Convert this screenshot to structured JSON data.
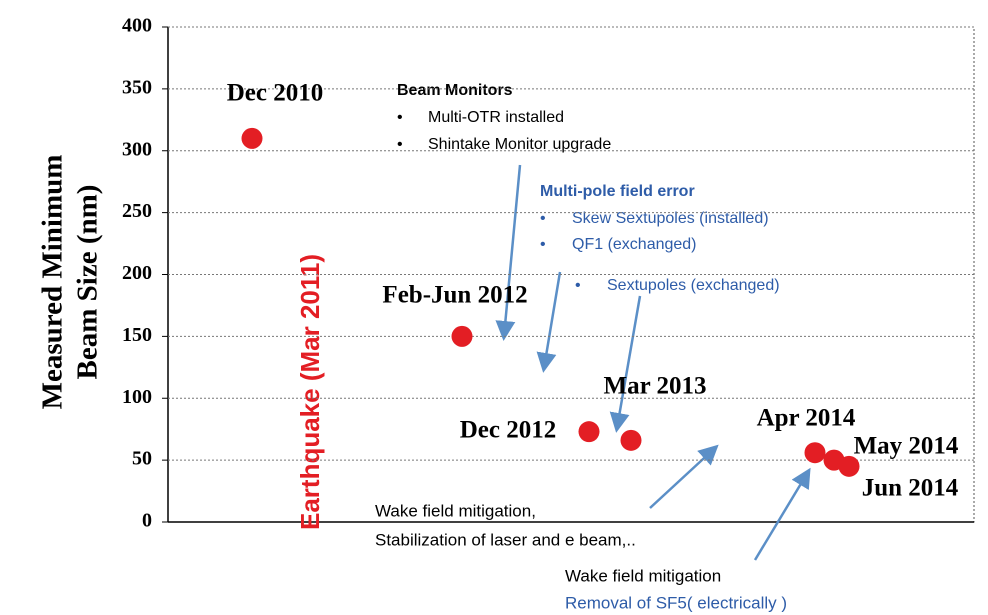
{
  "chart_data": {
    "type": "scatter",
    "ylabel": [
      "Measured Minimum",
      "Beam Size (nm)"
    ],
    "categories": [
      "Dec 2010",
      "Feb-Jun 2012",
      "Dec 2012",
      "Mar 2013",
      "Apr 2014",
      "May 2014",
      "Jun 2014"
    ],
    "values": [
      310,
      150,
      73,
      66,
      56,
      50,
      45
    ],
    "color": "#e31e24",
    "ylim": [
      0,
      400
    ],
    "yticks": [
      0,
      50,
      100,
      150,
      200,
      250,
      300,
      350,
      400
    ],
    "grid": true,
    "annotations": {
      "event": "Earthquake (Mar 2011)",
      "beam_monitors": {
        "title": "Beam Monitors",
        "items": [
          "Multi-OTR installed",
          "Shintake Monitor upgrade"
        ]
      },
      "multipole": {
        "title": "Multi-pole field error",
        "items": [
          "Skew Sextupoles (installed)",
          "QF1 (exchanged)",
          "Sextupoles (exchanged)"
        ]
      },
      "wake1": [
        "Wake field mitigation,",
        "Stabilization of laser and e beam,.."
      ],
      "wake2": [
        "Wake field mitigation",
        "Removal of SF5( electrically )"
      ]
    }
  }
}
